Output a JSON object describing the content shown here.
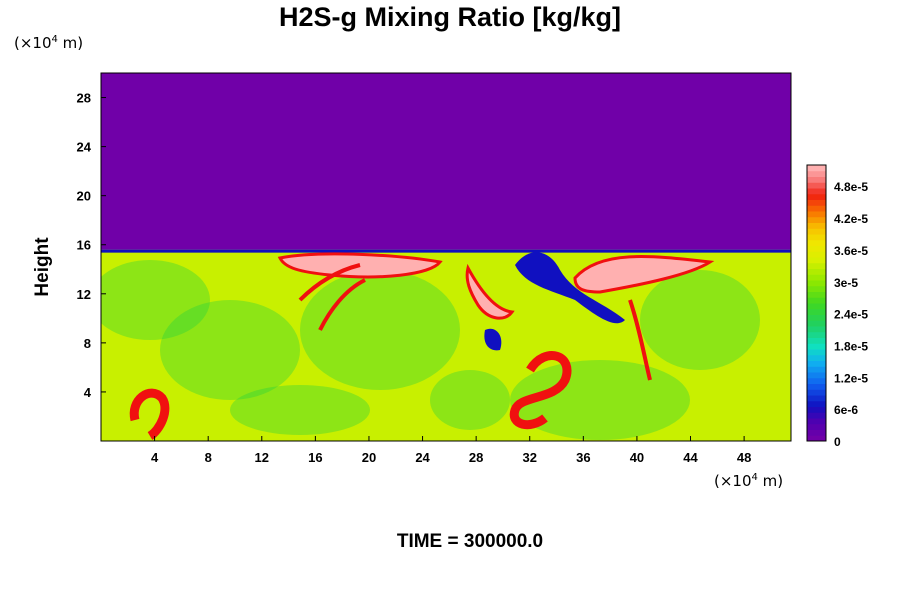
{
  "chart_data": {
    "type": "heatmap",
    "title": "H2S-g Mixing Ratio [kg/kg]",
    "ylabel": "Height",
    "x_unit_prefix": "(×10",
    "x_unit_exp": "4",
    "x_unit_suffix": " m)",
    "y_unit_prefix": "(×10",
    "y_unit_exp": "4",
    "y_unit_suffix": " m)",
    "xlim": [
      0,
      51.5
    ],
    "ylim": [
      0,
      30
    ],
    "x_ticks": [
      4,
      8,
      12,
      16,
      20,
      24,
      28,
      32,
      36,
      40,
      44,
      48
    ],
    "y_ticks": [
      4,
      8,
      12,
      16,
      20,
      24,
      28
    ],
    "colorbar": {
      "range": [
        0,
        5.2e-05
      ],
      "tick_labels": [
        "0",
        "6e-6",
        "1.2e-5",
        "1.8e-5",
        "2.4e-5",
        "3e-5",
        "3.6e-5",
        "4.2e-5",
        "4.8e-5"
      ],
      "tick_values": [
        0,
        6e-06,
        1.2e-05,
        1.8e-05,
        2.4e-05,
        3e-05,
        3.6e-05,
        4.2e-05,
        4.8e-05
      ]
    },
    "field_summary": {
      "upper_layer_value": 0,
      "upper_layer_bottom_height": 15.6,
      "lower_layer_typical_value": 3.3e-05
    },
    "colors": {
      "zero": "#7000a8",
      "low": "#1010c0",
      "mid": "#20d040",
      "typical": "#c8f000",
      "high": "#f01010",
      "max": "#ffb0b0"
    },
    "footer": "TIME = 300000.0"
  }
}
